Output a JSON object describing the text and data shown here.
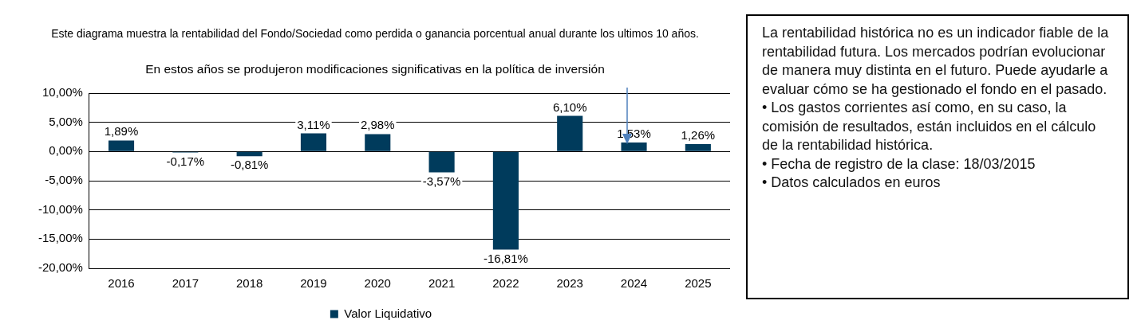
{
  "chart_data": {
    "type": "bar",
    "title": "Este diagrama muestra la rentabilidad del Fondo/Sociedad como perdida o ganancia porcentual anual durante los ultimos 10 años.",
    "subtitle": "En estos años se produjeron  modificaciones  significativas  en la política  de  inversión",
    "categories": [
      "2016",
      "2017",
      "2018",
      "2019",
      "2020",
      "2021",
      "2022",
      "2023",
      "2024",
      "2025"
    ],
    "series": [
      {
        "name": "Valor Liquidativo",
        "color": "#003b5c",
        "values": [
          1.89,
          -0.17,
          -0.81,
          3.11,
          2.98,
          -3.57,
          -16.81,
          6.1,
          1.53,
          1.26
        ],
        "value_labels": [
          "1,89%",
          "-0,17%",
          "-0,81%",
          "3,11%",
          "2,98%",
          "-3,57%",
          "-16,81%",
          "6,10%",
          "1,53%",
          "1,26%"
        ]
      }
    ],
    "ylim": [
      -20,
      10
    ],
    "yticks": [
      {
        "value": -20,
        "label": "-20,00%"
      },
      {
        "value": -15,
        "label": "-15,00%"
      },
      {
        "value": -10,
        "label": "-10,00%"
      },
      {
        "value": -5,
        "label": "-5,00%"
      },
      {
        "value": 0,
        "label": "0,00%"
      },
      {
        "value": 5,
        "label": "5,00%"
      },
      {
        "value": 10,
        "label": "10,00%"
      }
    ],
    "grid": "y",
    "legend": "bottom",
    "annotations": [
      "La rentabilidad histórica no es un indicador fiable de la rentabilidad futura. Los mercados podrían evolucionar de manera muy distinta en el futuro. Puede ayudarle a evaluar cómo se ha gestionado el fondo en el pasado.",
      "• Los gastos corrientes así como, en su caso, la comisión de resultados, están incluidos en el cálculo de la rentabilidad histórica.",
      "• Fecha de registro de la clase: 18/03/2015",
      "• Datos calculados en euros"
    ]
  }
}
